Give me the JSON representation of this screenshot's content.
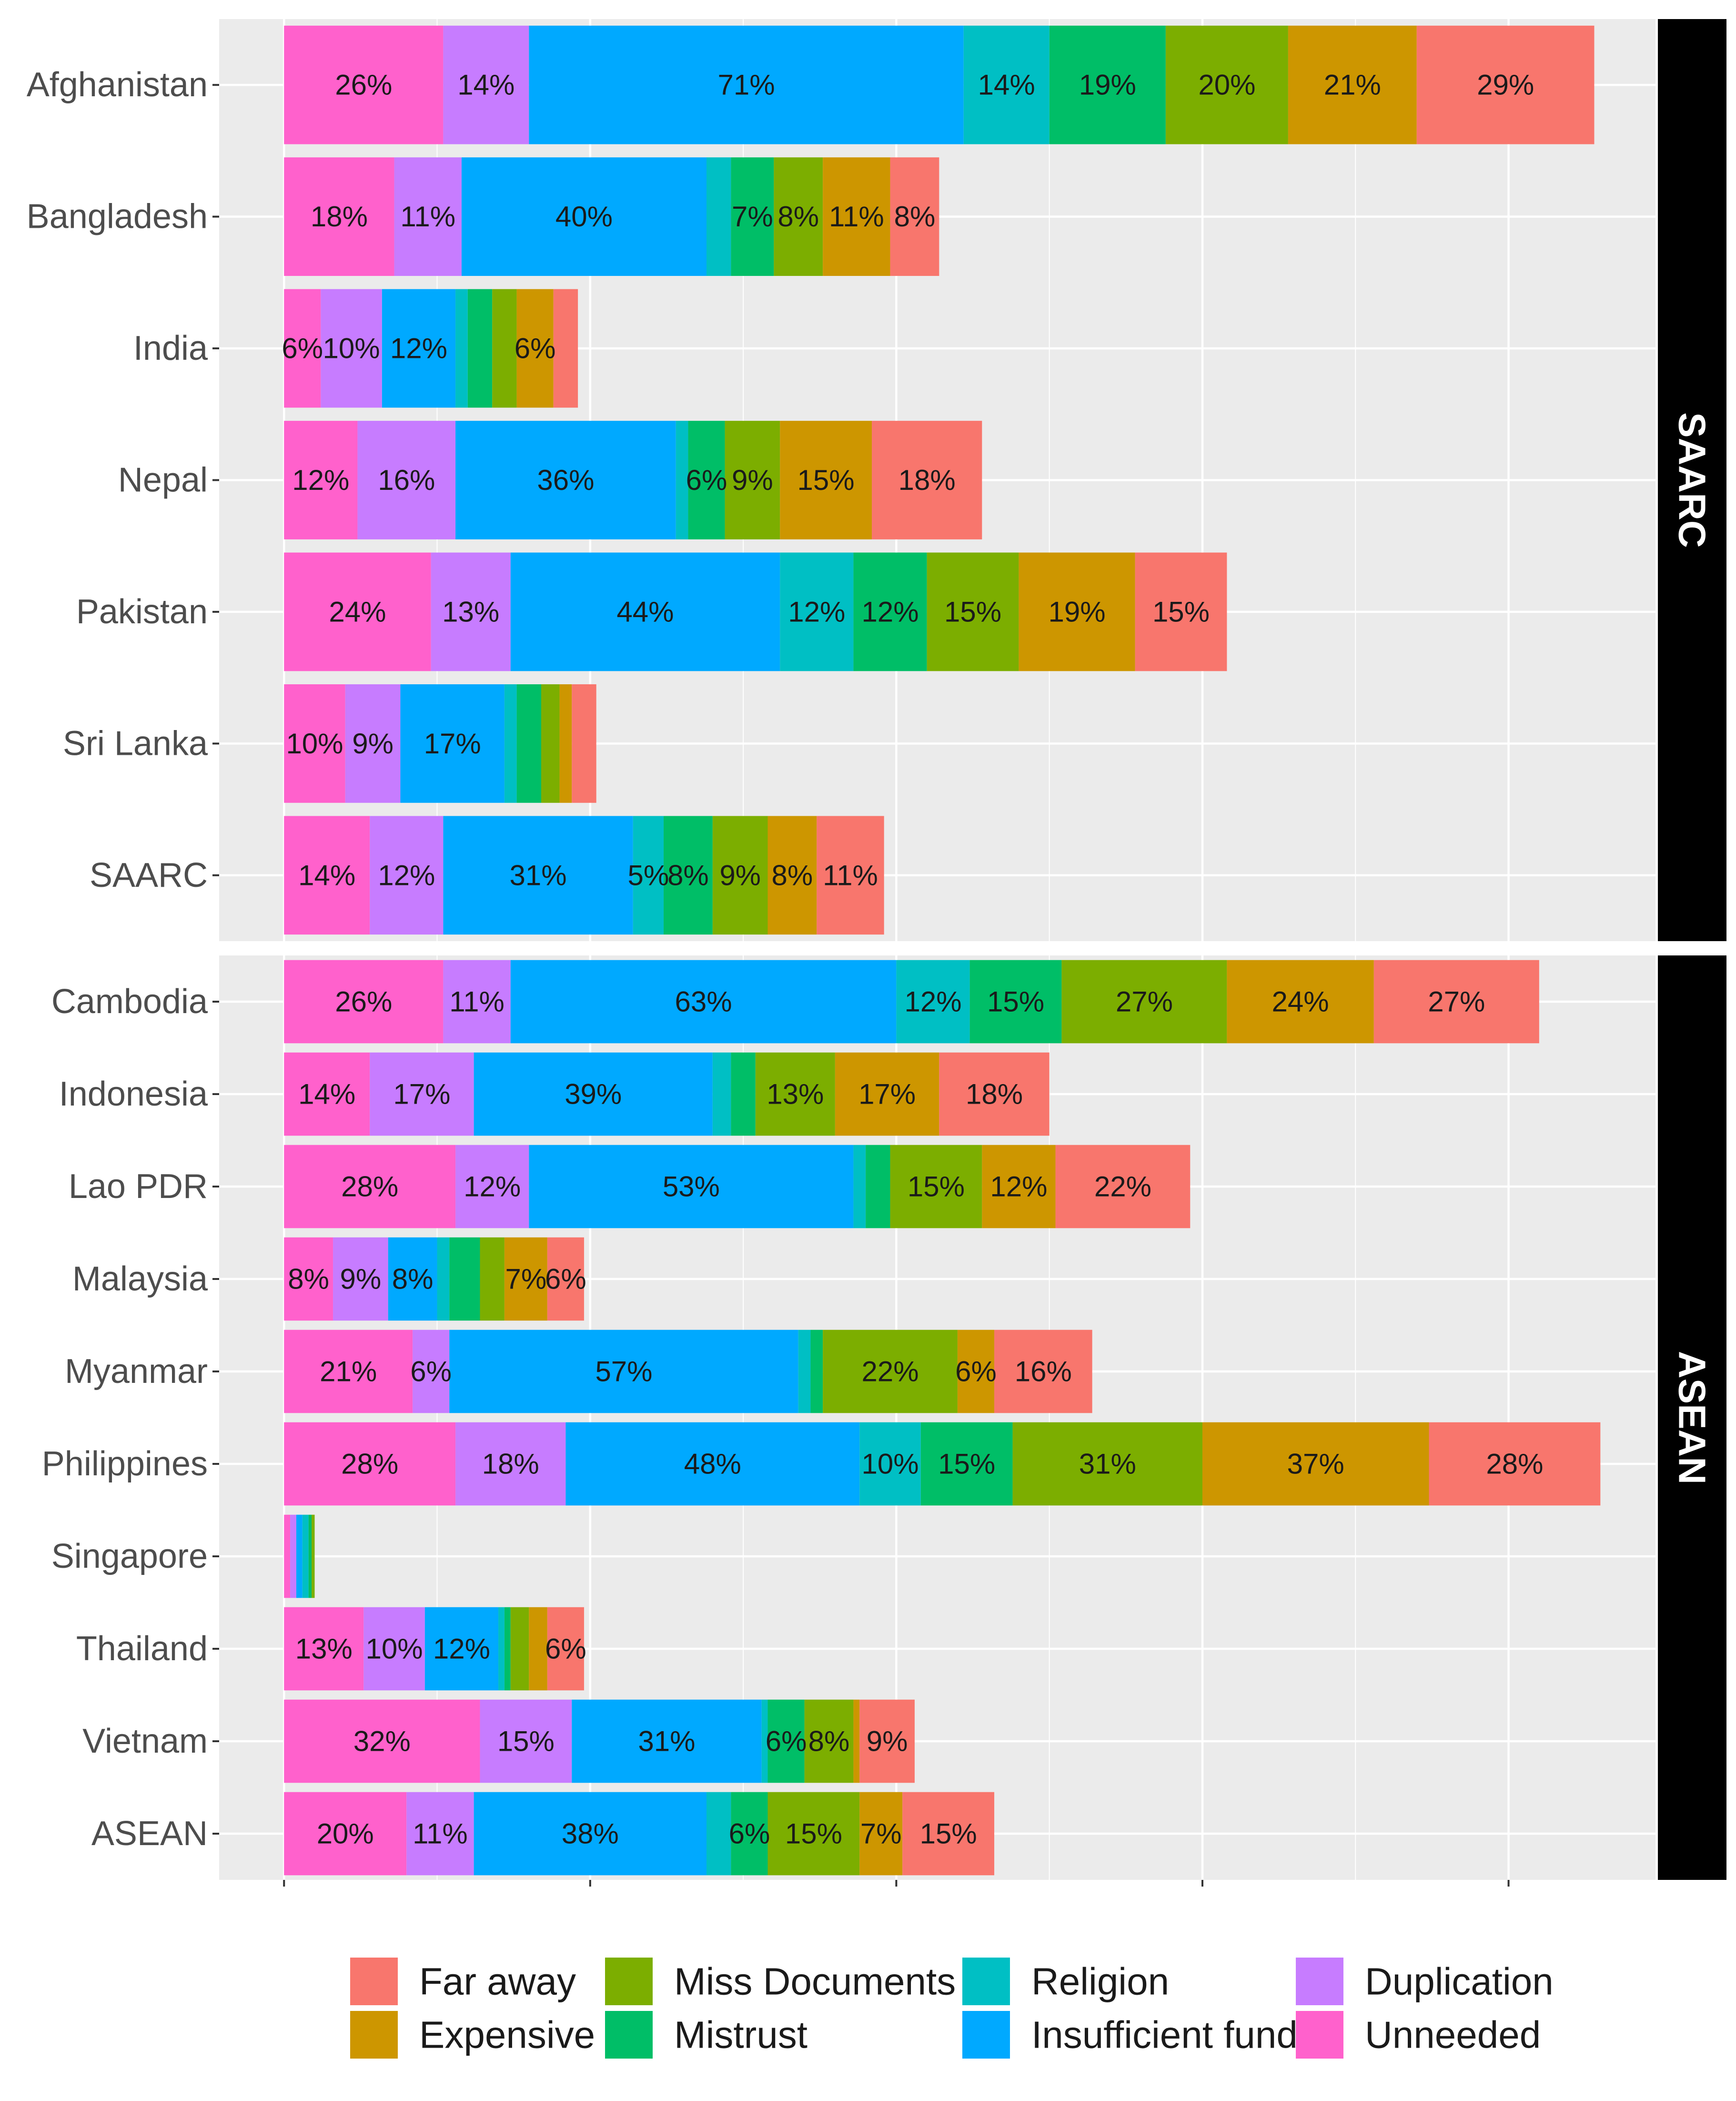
{
  "chart_data": {
    "type": "bar",
    "orientation": "horizontal",
    "stacked": true,
    "series_order": [
      "Unneeded",
      "Duplication",
      "Insufficient fund",
      "Religion",
      "Mistrust",
      "Miss Documents",
      "Expensive",
      "Far away"
    ],
    "colors": {
      "Unneeded": "#FF61CC",
      "Duplication": "#C77CFF",
      "Insufficient fund": "#00A9FF",
      "Religion": "#00BFC4",
      "Mistrust": "#00BE67",
      "Miss Documents": "#7CAE00",
      "Expensive": "#CD9600",
      "Far away": "#F8766D"
    },
    "panels": [
      {
        "strip_label": "SAARC",
        "rows": [
          {
            "label": "Afghanistan",
            "values": [
              26,
              14,
              71,
              14,
              19,
              20,
              21,
              29
            ]
          },
          {
            "label": "Bangladesh",
            "values": [
              18,
              11,
              40,
              4,
              7,
              8,
              11,
              8
            ]
          },
          {
            "label": "India",
            "values": [
              6,
              10,
              12,
              2,
              4,
              4,
              6,
              4
            ]
          },
          {
            "label": "Nepal",
            "values": [
              12,
              16,
              36,
              2,
              6,
              9,
              15,
              18
            ]
          },
          {
            "label": "Pakistan",
            "values": [
              24,
              13,
              44,
              12,
              12,
              15,
              19,
              15
            ]
          },
          {
            "label": "Sri Lanka",
            "values": [
              10,
              9,
              17,
              2,
              4,
              3,
              2,
              4
            ]
          },
          {
            "label": "SAARC",
            "values": [
              14,
              12,
              31,
              5,
              8,
              9,
              8,
              11
            ]
          }
        ]
      },
      {
        "strip_label": "ASEAN",
        "rows": [
          {
            "label": "Cambodia",
            "values": [
              26,
              11,
              63,
              12,
              15,
              27,
              24,
              27
            ]
          },
          {
            "label": "Indonesia",
            "values": [
              14,
              17,
              39,
              3,
              4,
              13,
              17,
              18
            ]
          },
          {
            "label": "Lao PDR",
            "values": [
              28,
              12,
              53,
              2,
              4,
              15,
              12,
              22
            ]
          },
          {
            "label": "Malaysia",
            "values": [
              8,
              9,
              8,
              2,
              5,
              4,
              7,
              6
            ]
          },
          {
            "label": "Myanmar",
            "values": [
              21,
              6,
              57,
              2,
              2,
              22,
              6,
              16
            ]
          },
          {
            "label": "Philippines",
            "values": [
              28,
              18,
              48,
              10,
              15,
              31,
              37,
              28
            ]
          },
          {
            "label": "Singapore",
            "values": [
              1,
              1,
              1,
              1,
              0.5,
              0.5,
              0,
              0
            ]
          },
          {
            "label": "Thailand",
            "values": [
              13,
              10,
              12,
              1,
              1,
              3,
              3,
              6
            ]
          },
          {
            "label": "Vietnam",
            "values": [
              32,
              15,
              31,
              1,
              6,
              8,
              1,
              9
            ]
          },
          {
            "label": "ASEAN",
            "values": [
              20,
              11,
              38,
              4,
              6,
              15,
              7,
              15
            ]
          }
        ]
      }
    ],
    "value_labels": {
      "Afghanistan": [
        "26%",
        "14%",
        "71%",
        "14%",
        "19%",
        "20%",
        "21%",
        "29%"
      ],
      "Bangladesh": [
        "18%",
        "11%",
        "40%",
        "",
        "7%",
        "8%",
        "11%",
        "8%"
      ],
      "India": [
        "6%",
        "10%",
        "12%",
        "",
        "",
        "",
        "6%",
        ""
      ],
      "Nepal": [
        "12%",
        "16%",
        "36%",
        "",
        "6%",
        "9%",
        "15%",
        "18%"
      ],
      "Pakistan": [
        "24%",
        "13%",
        "44%",
        "12%",
        "12%",
        "15%",
        "19%",
        "15%"
      ],
      "Sri Lanka": [
        "10%",
        "9%",
        "17%",
        "",
        "",
        "",
        "",
        ""
      ],
      "SAARC": [
        "14%",
        "12%",
        "31%",
        "5%",
        "8%",
        "9%",
        "8%",
        "11%"
      ],
      "Cambodia": [
        "26%",
        "11%",
        "63%",
        "12%",
        "15%",
        "27%",
        "24%",
        "27%"
      ],
      "Indonesia": [
        "14%",
        "17%",
        "39%",
        "",
        "",
        "13%",
        "17%",
        "18%"
      ],
      "Lao PDR": [
        "28%",
        "12%",
        "53%",
        "",
        "",
        "15%",
        "12%",
        "22%"
      ],
      "Malaysia": [
        "8%",
        "9%",
        "8%",
        "",
        "",
        "",
        "7%",
        "6%"
      ],
      "Myanmar": [
        "21%",
        "6%",
        "57%",
        "",
        "",
        "22%",
        "6%",
        "16%"
      ],
      "Philippines": [
        "28%",
        "18%",
        "48%",
        "10%",
        "15%",
        "31%",
        "37%",
        "28%"
      ],
      "Singapore": [
        "",
        "",
        "",
        "",
        "",
        "",
        "",
        ""
      ],
      "Thailand": [
        "13%",
        "10%",
        "12%",
        "",
        "",
        "",
        "",
        "6%"
      ],
      "Vietnam": [
        "32%",
        "15%",
        "31%",
        "",
        "6%",
        "8%",
        "",
        "9%"
      ],
      "ASEAN": [
        "20%",
        "11%",
        "38%",
        "",
        "6%",
        "15%",
        "7%",
        "15%"
      ]
    },
    "x_range": [
      -10.6,
      224
    ],
    "x_grid_major": [
      0,
      50,
      100,
      150,
      200
    ],
    "x_tick_labels_shown": false,
    "legend_position": "bottom",
    "legend_items": [
      {
        "label": "Far away",
        "series": "Far away"
      },
      {
        "label": "Miss Documents",
        "series": "Miss Documents"
      },
      {
        "label": "Religion",
        "series": "Religion"
      },
      {
        "label": "Duplication",
        "series": "Duplication"
      },
      {
        "label": "Expensive",
        "series": "Expensive"
      },
      {
        "label": "Mistrust",
        "series": "Mistrust"
      },
      {
        "label": "Insufficient fund",
        "series": "Insufficient fund"
      },
      {
        "label": "Unneeded",
        "series": "Unneeded"
      }
    ]
  }
}
